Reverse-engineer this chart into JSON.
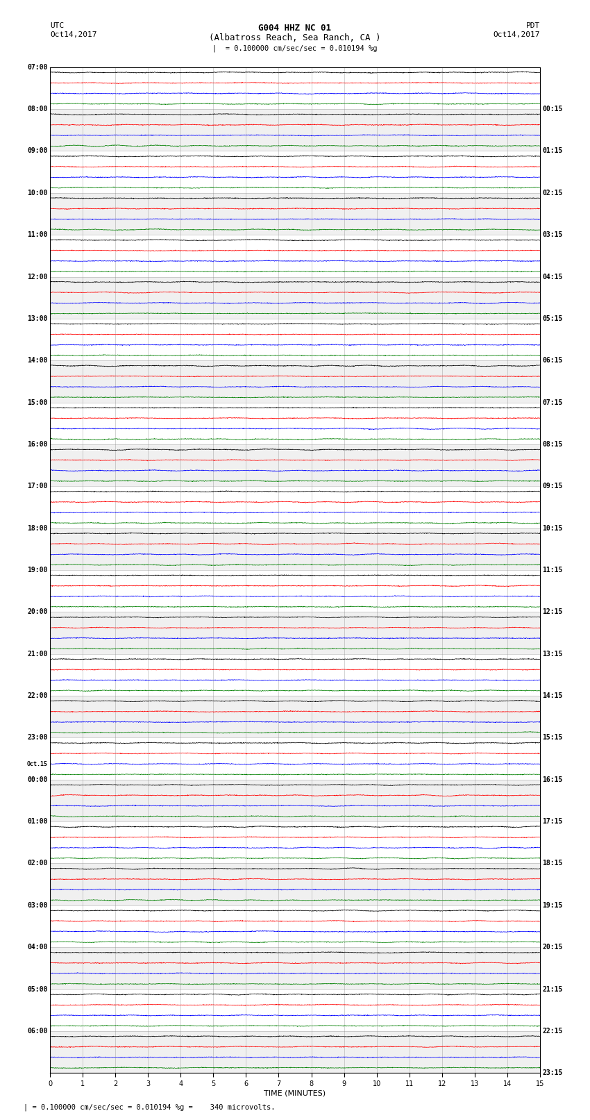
{
  "title_line1": "G004 HHZ NC 01",
  "title_line2": "(Albatross Reach, Sea Ranch, CA )",
  "scale_text": "= 0.100000 cm/sec/sec = 0.010194 %g",
  "footer_text": "= 0.100000 cm/sec/sec = 0.010194 %g =    340 microvolts.",
  "utc_label": "UTC",
  "pdt_label": "PDT",
  "date_left": "Oct14,2017",
  "date_right": "Oct14,2017",
  "xlabel": "TIME (MINUTES)",
  "xmin": 0,
  "xmax": 15,
  "xticks": [
    0,
    1,
    2,
    3,
    4,
    5,
    6,
    7,
    8,
    9,
    10,
    11,
    12,
    13,
    14,
    15
  ],
  "colors": [
    "black",
    "red",
    "blue",
    "green"
  ],
  "left_times": [
    "07:00",
    "08:00",
    "09:00",
    "10:00",
    "11:00",
    "12:00",
    "13:00",
    "14:00",
    "15:00",
    "16:00",
    "17:00",
    "18:00",
    "19:00",
    "20:00",
    "21:00",
    "22:00",
    "23:00",
    "00:00",
    "01:00",
    "02:00",
    "03:00",
    "04:00",
    "05:00",
    "06:00"
  ],
  "left_special": [
    16
  ],
  "right_times": [
    "00:15",
    "01:15",
    "02:15",
    "03:15",
    "04:15",
    "05:15",
    "06:15",
    "07:15",
    "08:15",
    "09:15",
    "10:15",
    "11:15",
    "12:15",
    "13:15",
    "14:15",
    "15:15",
    "16:15",
    "17:15",
    "18:15",
    "19:15",
    "20:15",
    "21:15",
    "22:15",
    "23:15"
  ],
  "num_rows": 24,
  "traces_per_row": 4,
  "fig_width": 8.5,
  "fig_height": 16.13,
  "dpi": 100,
  "bg_color": "white",
  "band_color_even": "#ffffff",
  "band_color_odd": "#f0f0f0",
  "trace_amplitude": 0.28,
  "noise_seed": 42
}
